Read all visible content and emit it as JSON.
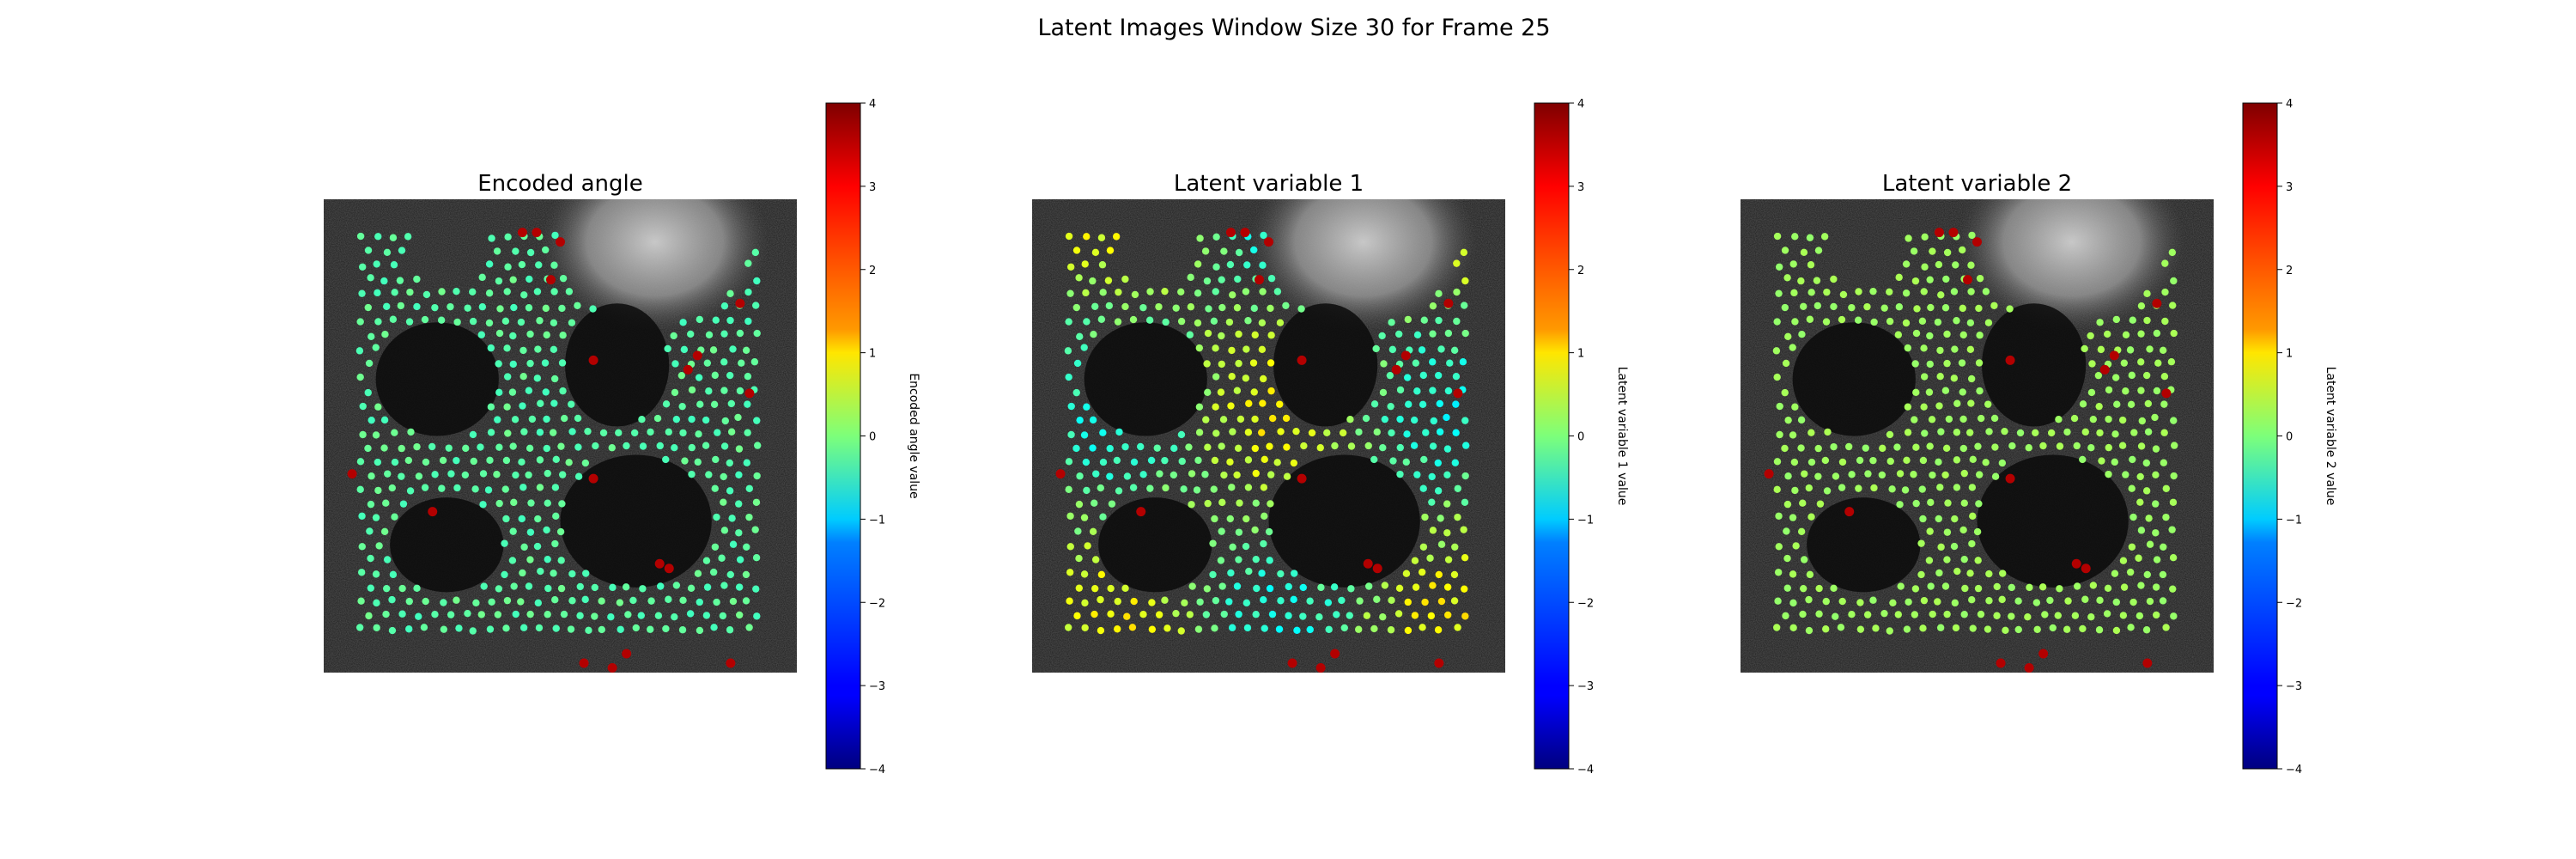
{
  "figure": {
    "title": "Latent Images Window Size 30 for Frame 25"
  },
  "chart_data": [
    {
      "type": "scatter",
      "title": "Encoded angle",
      "colorbar_label": "Encoded angle value",
      "colorbar_ticks": [
        "4",
        "3",
        "2",
        "1",
        "0",
        "−1",
        "−2",
        "−3",
        "−4"
      ],
      "vmin": -4,
      "vmax": 4,
      "colormap": "jet",
      "base_value": -0.3,
      "value_spread": 0.4,
      "outlier_value": 3.6
    },
    {
      "type": "scatter",
      "title": "Latent variable 1",
      "colorbar_label": "Latent variable 1 value",
      "colorbar_ticks": [
        "4",
        "3",
        "2",
        "1",
        "0",
        "−1",
        "−2",
        "−3",
        "−4"
      ],
      "vmin": -4,
      "vmax": 4,
      "colormap": "jet",
      "base_value": 0.1,
      "value_spread": 1.6,
      "outlier_value": 3.6
    },
    {
      "type": "scatter",
      "title": "Latent variable 2",
      "colorbar_label": "Latent variable 2 value",
      "colorbar_ticks": [
        "4",
        "3",
        "2",
        "1",
        "0",
        "−1",
        "−2",
        "−3",
        "−4"
      ],
      "vmin": -4,
      "vmax": 4,
      "colormap": "jet",
      "base_value": 0.25,
      "value_spread": 0.2,
      "outlier_value": 3.6
    }
  ],
  "colors": {
    "image_background": "#1c1c1c",
    "outlier": "#e00000"
  }
}
